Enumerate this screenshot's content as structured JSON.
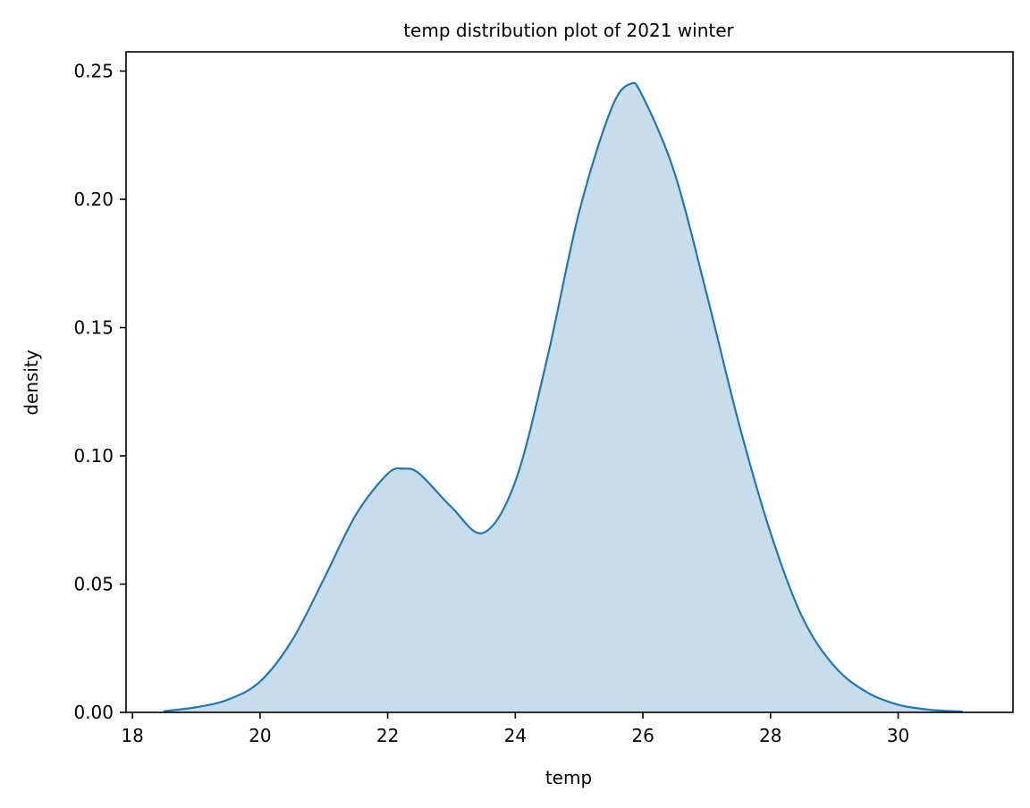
{
  "chart_data": {
    "type": "area",
    "title": "temp distribution plot of 2021 winter",
    "xlabel": "temp",
    "ylabel": "density",
    "xlim": [
      17.9,
      31.8
    ],
    "ylim": [
      0,
      0.2575
    ],
    "xticks": [
      18,
      20,
      22,
      24,
      26,
      28,
      30
    ],
    "xtick_labels": [
      "18",
      "20",
      "22",
      "24",
      "26",
      "28",
      "30"
    ],
    "yticks": [
      0,
      0.05,
      0.1,
      0.15,
      0.2,
      0.25
    ],
    "ytick_labels": [
      "0.00",
      "0.05",
      "0.10",
      "0.15",
      "0.20",
      "0.25"
    ],
    "grid": false,
    "series": [
      {
        "color": "#1f77b4",
        "fill_color": "#1f77b4",
        "fill_opacity": 0.25,
        "x": [
          18.5,
          19.0,
          19.5,
          20.0,
          20.5,
          21.0,
          21.5,
          22.0,
          22.25,
          22.5,
          23.0,
          23.5,
          24.0,
          24.5,
          25.0,
          25.5,
          25.8,
          26.0,
          26.5,
          27.0,
          27.5,
          28.0,
          28.5,
          29.0,
          29.5,
          30.0,
          30.5,
          31.0
        ],
        "y": [
          0.0005,
          0.002,
          0.005,
          0.012,
          0.028,
          0.052,
          0.077,
          0.093,
          0.095,
          0.093,
          0.08,
          0.07,
          0.09,
          0.138,
          0.195,
          0.235,
          0.245,
          0.24,
          0.21,
          0.163,
          0.113,
          0.07,
          0.037,
          0.018,
          0.008,
          0.003,
          0.001,
          0.0003
        ]
      }
    ]
  }
}
